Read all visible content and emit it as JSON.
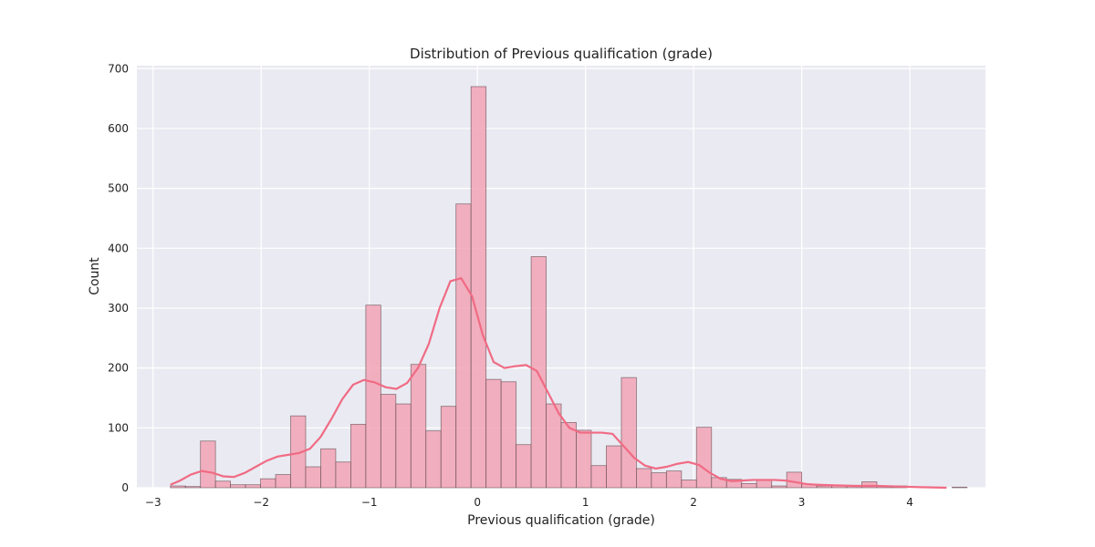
{
  "chart_data": {
    "type": "bar",
    "title": "Distribution of Previous qualification (grade)",
    "xlabel": "Previous qualification (grade)",
    "ylabel": "Count",
    "xlim": [
      -3.15,
      4.7
    ],
    "ylim": [
      0,
      705
    ],
    "x_ticks": [
      -3,
      -2,
      -1,
      0,
      1,
      2,
      3,
      4
    ],
    "x_tick_labels": [
      "−3",
      "−2",
      "−1",
      "0",
      "1",
      "2",
      "3",
      "4"
    ],
    "y_ticks": [
      0,
      100,
      200,
      300,
      400,
      500,
      600,
      700
    ],
    "y_tick_labels": [
      "0",
      "100",
      "200",
      "300",
      "400",
      "500",
      "600",
      "700"
    ],
    "grid": true,
    "legend": "none",
    "bin_start": -2.84,
    "bin_width": 0.13905,
    "counts": [
      3,
      2,
      78,
      11,
      5,
      5,
      15,
      22,
      120,
      35,
      65,
      43,
      106,
      305,
      156,
      140,
      206,
      95,
      136,
      474,
      670,
      181,
      177,
      72,
      386,
      140,
      109,
      96,
      37,
      70,
      184,
      32,
      25,
      28,
      13,
      101,
      17,
      14,
      7,
      12,
      3,
      26,
      6,
      3,
      3,
      4,
      10,
      3,
      3,
      0,
      0,
      0,
      1
    ],
    "kde": {
      "name": "",
      "x": [
        -2.84,
        -2.75,
        -2.65,
        -2.55,
        -2.45,
        -2.35,
        -2.25,
        -2.15,
        -2.05,
        -1.95,
        -1.85,
        -1.75,
        -1.65,
        -1.55,
        -1.45,
        -1.35,
        -1.25,
        -1.15,
        -1.05,
        -0.95,
        -0.85,
        -0.75,
        -0.65,
        -0.55,
        -0.45,
        -0.35,
        -0.25,
        -0.15,
        -0.05,
        0.05,
        0.15,
        0.25,
        0.35,
        0.45,
        0.55,
        0.65,
        0.75,
        0.85,
        0.95,
        1.05,
        1.15,
        1.25,
        1.35,
        1.45,
        1.55,
        1.65,
        1.75,
        1.85,
        1.95,
        2.05,
        2.15,
        2.25,
        2.35,
        2.45,
        2.55,
        2.65,
        2.75,
        2.85,
        2.95,
        3.05,
        3.15,
        3.3,
        3.5,
        3.7,
        3.9,
        4.1,
        4.34
      ],
      "y": [
        5,
        12,
        22,
        28,
        25,
        19,
        18,
        25,
        35,
        45,
        52,
        55,
        58,
        65,
        85,
        115,
        148,
        172,
        180,
        176,
        168,
        165,
        175,
        200,
        240,
        300,
        345,
        350,
        320,
        255,
        210,
        200,
        203,
        205,
        195,
        160,
        125,
        100,
        92,
        92,
        92,
        90,
        70,
        50,
        37,
        32,
        35,
        40,
        43,
        38,
        25,
        15,
        11,
        12,
        13,
        13,
        13,
        12,
        9,
        6,
        5,
        4,
        3,
        3,
        2,
        1,
        0
      ]
    },
    "colors": {
      "bar_fill": "#f2a3b5",
      "bar_edge": "#5f4a50",
      "kde_line": "#f06b84",
      "plot_bg": "#eaeaf2",
      "grid": "#ffffff"
    }
  }
}
